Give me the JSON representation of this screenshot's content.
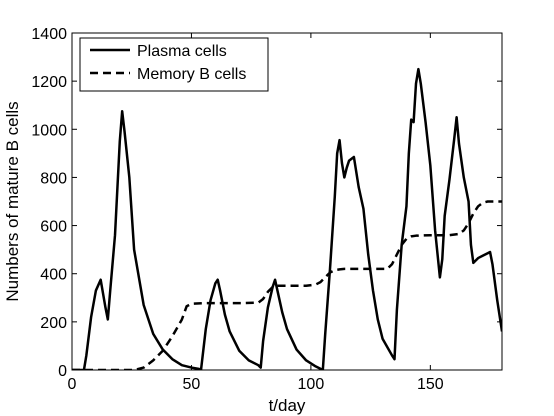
{
  "chart_data": {
    "type": "line",
    "xlabel": "t/day",
    "ylabel": "Numbers of mature B cells",
    "xlim": [
      0,
      180
    ],
    "ylim": [
      0,
      1400
    ],
    "xticks": [
      0,
      50,
      100,
      150
    ],
    "yticks": [
      0,
      200,
      400,
      600,
      800,
      1000,
      1200,
      1400
    ],
    "grid": false,
    "legend_position": "top-left",
    "series": [
      {
        "name": "Plasma cells",
        "style": "solid",
        "color": "#000000",
        "x": [
          0,
          5,
          6,
          8,
          10,
          12,
          14,
          15,
          16,
          18,
          20,
          21,
          22,
          24,
          26,
          30,
          34,
          38,
          42,
          46,
          50,
          53,
          54,
          56,
          58,
          60,
          61,
          62,
          64,
          66,
          70,
          74,
          78,
          79,
          80,
          82,
          84,
          85,
          86,
          88,
          90,
          94,
          98,
          102,
          104,
          105,
          106,
          108,
          110,
          111,
          112,
          113,
          114,
          115,
          116,
          118,
          120,
          122,
          124,
          126,
          128,
          130,
          134,
          135,
          136,
          138,
          140,
          141,
          142,
          143,
          144,
          145,
          146,
          148,
          150,
          152,
          154,
          155,
          156,
          158,
          160,
          161,
          162,
          164,
          166,
          167,
          168,
          170,
          172,
          174,
          175,
          176,
          178,
          180
        ],
        "y": [
          0,
          0,
          60,
          220,
          330,
          375,
          260,
          210,
          330,
          560,
          950,
          1075,
          990,
          800,
          500,
          270,
          150,
          85,
          45,
          20,
          10,
          5,
          0,
          170,
          290,
          360,
          375,
          330,
          230,
          160,
          80,
          40,
          20,
          10,
          120,
          260,
          345,
          375,
          330,
          240,
          170,
          85,
          40,
          15,
          5,
          0,
          150,
          420,
          720,
          900,
          955,
          860,
          800,
          840,
          870,
          885,
          760,
          670,
          480,
          330,
          210,
          130,
          60,
          45,
          250,
          520,
          680,
          900,
          1040,
          1030,
          1190,
          1250,
          1190,
          1030,
          850,
          580,
          385,
          460,
          640,
          790,
          960,
          1050,
          940,
          800,
          700,
          520,
          445,
          465,
          475,
          485,
          490,
          440,
          290,
          160
        ]
      },
      {
        "name": "Memory B cells",
        "style": "dashed",
        "color": "#000000",
        "x": [
          0,
          26,
          30,
          34,
          38,
          42,
          46,
          48,
          50,
          56,
          64,
          72,
          78,
          80,
          82,
          84,
          86,
          90,
          98,
          102,
          104,
          106,
          108,
          110,
          112,
          114,
          120,
          128,
          132,
          134,
          136,
          138,
          140,
          142,
          144,
          150,
          158,
          162,
          164,
          166,
          168,
          170,
          172,
          174,
          180
        ],
        "y": [
          0,
          0,
          10,
          40,
          80,
          140,
          210,
          265,
          275,
          278,
          278,
          278,
          280,
          295,
          325,
          345,
          350,
          350,
          350,
          355,
          365,
          385,
          405,
          415,
          418,
          420,
          420,
          420,
          420,
          440,
          480,
          520,
          545,
          555,
          558,
          560,
          560,
          565,
          580,
          610,
          650,
          680,
          695,
          700,
          700
        ]
      }
    ]
  }
}
